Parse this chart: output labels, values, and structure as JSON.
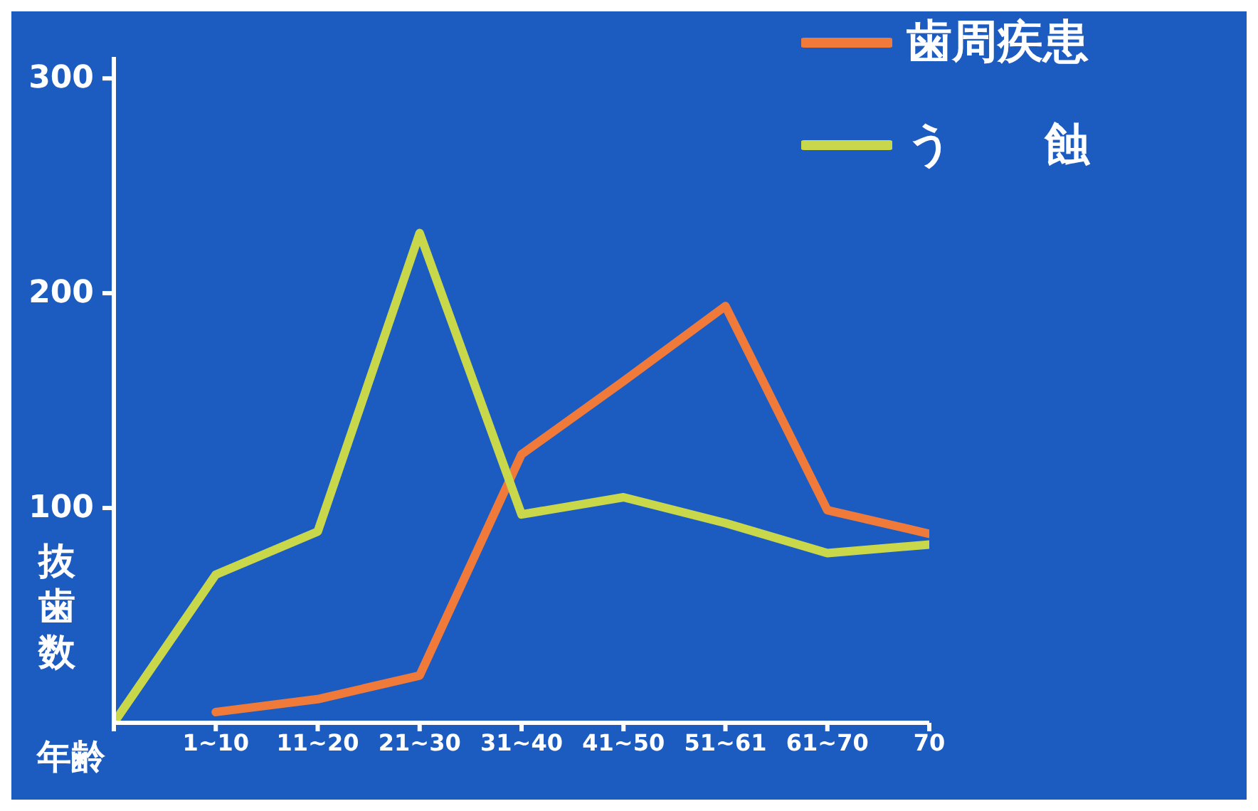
{
  "chart_data": {
    "type": "line",
    "xlabel": "年齢",
    "ylabel": "抜歯数",
    "categories": [
      null,
      "1~10",
      "11~20",
      "21~30",
      "31~40",
      "41~50",
      "51~61",
      "61~70",
      "70"
    ],
    "series": [
      {
        "name": "歯周疾患",
        "color": "#f07a3a",
        "values": [
          null,
          5,
          11,
          22,
          125,
          159,
          194,
          99,
          88
        ]
      },
      {
        "name": "う　　蝕",
        "color": "#c8d84a",
        "values": [
          0,
          69,
          89,
          228,
          97,
          105,
          93,
          79,
          83
        ]
      }
    ],
    "ylim": [
      0,
      310
    ],
    "yticks": [
      100,
      200,
      300
    ],
    "grid": false,
    "legend": "top right",
    "marker": "none",
    "line_style": "solid"
  }
}
